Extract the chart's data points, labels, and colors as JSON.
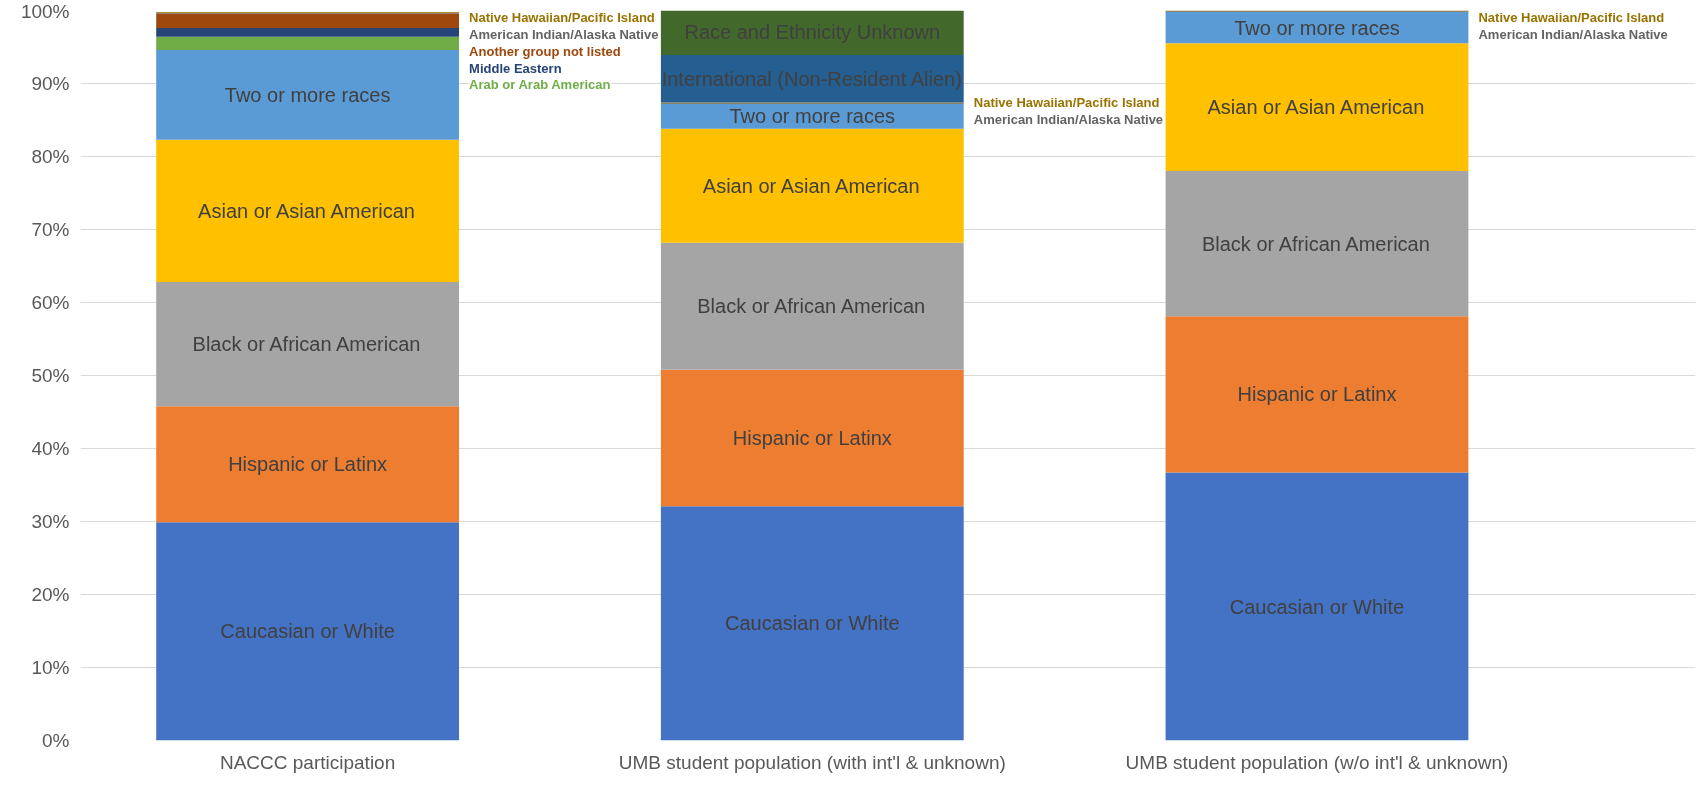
{
  "chart_data": {
    "type": "bar",
    "stacked": true,
    "categories": [
      "NACCC participation",
      "UMB student population (with int'l & unknown)",
      "UMB student population (w/o int'l & unknown)"
    ],
    "series": [
      {
        "name": "Caucasian or White",
        "color": "#4472c4",
        "values": [
          29.9,
          32.1,
          36.7
        ]
      },
      {
        "name": "Hispanic or Latinx",
        "color": "#ed7d31",
        "values": [
          15.9,
          18.7,
          21.4
        ]
      },
      {
        "name": "Black or African American",
        "color": "#a5a5a5",
        "values": [
          17.0,
          17.4,
          19.9
        ]
      },
      {
        "name": "Asian or Asian American",
        "color": "#ffc000",
        "values": [
          19.5,
          15.6,
          17.5
        ]
      },
      {
        "name": "Two or more races",
        "color": "#5b9bd5",
        "values": [
          12.3,
          3.4,
          4.3
        ]
      },
      {
        "name": "Arab or Arab American",
        "color": "#70ad47",
        "values": [
          1.8,
          null,
          null
        ]
      },
      {
        "name": "Middle Eastern",
        "color": "#264478",
        "values": [
          1.2,
          null,
          null
        ]
      },
      {
        "name": "Another group not listed",
        "color": "#9e480e",
        "values": [
          2.0,
          null,
          null
        ]
      },
      {
        "name": "American Indian/Alaska Native",
        "color": "#636363",
        "values": [
          0.1,
          0.1,
          0.1
        ]
      },
      {
        "name": "Native Hawaiian/Pacific Island",
        "color": "#997300",
        "values": [
          0.1,
          0.1,
          0.1
        ]
      },
      {
        "name": "International (Non-Resident Alien)",
        "color": "#255e91",
        "values": [
          null,
          6.5,
          null
        ]
      },
      {
        "name": "Race and Ethnicity Unknown",
        "color": "#43682b",
        "values": [
          null,
          6.3,
          null
        ]
      }
    ],
    "ylim": [
      0,
      100
    ],
    "yticks": [
      {
        "value": 0,
        "label": "0%"
      },
      {
        "value": 10,
        "label": "10%"
      },
      {
        "value": 20,
        "label": "20%"
      },
      {
        "value": 30,
        "label": "30%"
      },
      {
        "value": 40,
        "label": "40%"
      },
      {
        "value": 50,
        "label": "50%"
      },
      {
        "value": 60,
        "label": "60%"
      },
      {
        "value": 70,
        "label": "70%"
      },
      {
        "value": 80,
        "label": "80%"
      },
      {
        "value": 90,
        "label": "90%"
      },
      {
        "value": 100,
        "label": "100%"
      }
    ],
    "grid": "y",
    "legend": false
  }
}
